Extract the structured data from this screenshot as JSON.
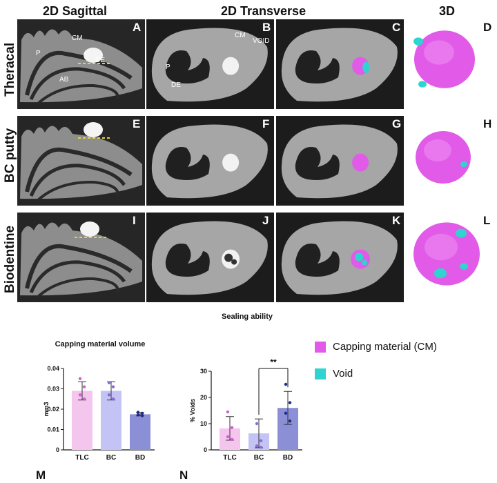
{
  "headers": {
    "col1": "2D Sagittal",
    "col2": "2D Transverse",
    "col3": "3D"
  },
  "rows": [
    {
      "label": "Theracal",
      "letters": [
        "A",
        "B",
        "C",
        "D"
      ]
    },
    {
      "label": "BC putty",
      "letters": [
        "E",
        "F",
        "G",
        "H"
      ]
    },
    {
      "label": "Biodentine",
      "letters": [
        "I",
        "J",
        "K",
        "L"
      ]
    }
  ],
  "annotations": {
    "cm": "CM",
    "p": "P",
    "de": "DE",
    "ab": "AB",
    "void": "VOID"
  },
  "legend": {
    "items": [
      {
        "label": "Capping material (CM)",
        "color": "#e15be8"
      },
      {
        "label": "Void",
        "color": "#2fd3cf"
      }
    ]
  },
  "panel_letters": {
    "m": "M",
    "n": "N"
  },
  "colors": {
    "tlc": "#f4c6ee",
    "bc": "#c3c4f5",
    "bd": "#8b8fd6",
    "tlc_dot": "#d45bd6",
    "bc_dot": "#8a6ad6",
    "bd_dot": "#1e2a8a",
    "cm": "#e15be8",
    "void": "#2fd3cf"
  },
  "chart_data": [
    {
      "type": "bar",
      "title": "Capping material volume",
      "ylabel": "mm3",
      "categories": [
        "TLC",
        "BC",
        "BD"
      ],
      "values": [
        0.029,
        0.029,
        0.0175
      ],
      "errors": [
        0.0045,
        0.0045,
        0.0008
      ],
      "points": [
        [
          0.035,
          0.031,
          0.027,
          0.025
        ],
        [
          0.033,
          0.031,
          0.027,
          0.025
        ],
        [
          0.0185,
          0.018,
          0.0172,
          0.0168
        ]
      ],
      "ylim": [
        0,
        0.04
      ],
      "yticks": [
        0,
        0.01,
        0.02,
        0.03,
        0.04
      ],
      "ytick_labels": [
        "0",
        "0.01",
        "0.02",
        "0.03",
        "0.04"
      ]
    },
    {
      "type": "bar",
      "title": "Sealing ability",
      "ylabel": "% Voids",
      "categories": [
        "TLC",
        "BC",
        "BD"
      ],
      "values": [
        8.2,
        6.3,
        16.0
      ],
      "errors": [
        4.5,
        5.5,
        6.3
      ],
      "points": [
        [
          14.5,
          8.5,
          5.0,
          4.0
        ],
        [
          10.0,
          3.5,
          1.5,
          1.0
        ],
        [
          25.0,
          18.0,
          14.0,
          11.0
        ]
      ],
      "ylim": [
        0,
        30
      ],
      "yticks": [
        0,
        10,
        20,
        30
      ],
      "ytick_labels": [
        "0",
        "10",
        "20",
        "30"
      ],
      "significance": {
        "from": "BC",
        "to": "BD",
        "label": "**"
      }
    }
  ]
}
